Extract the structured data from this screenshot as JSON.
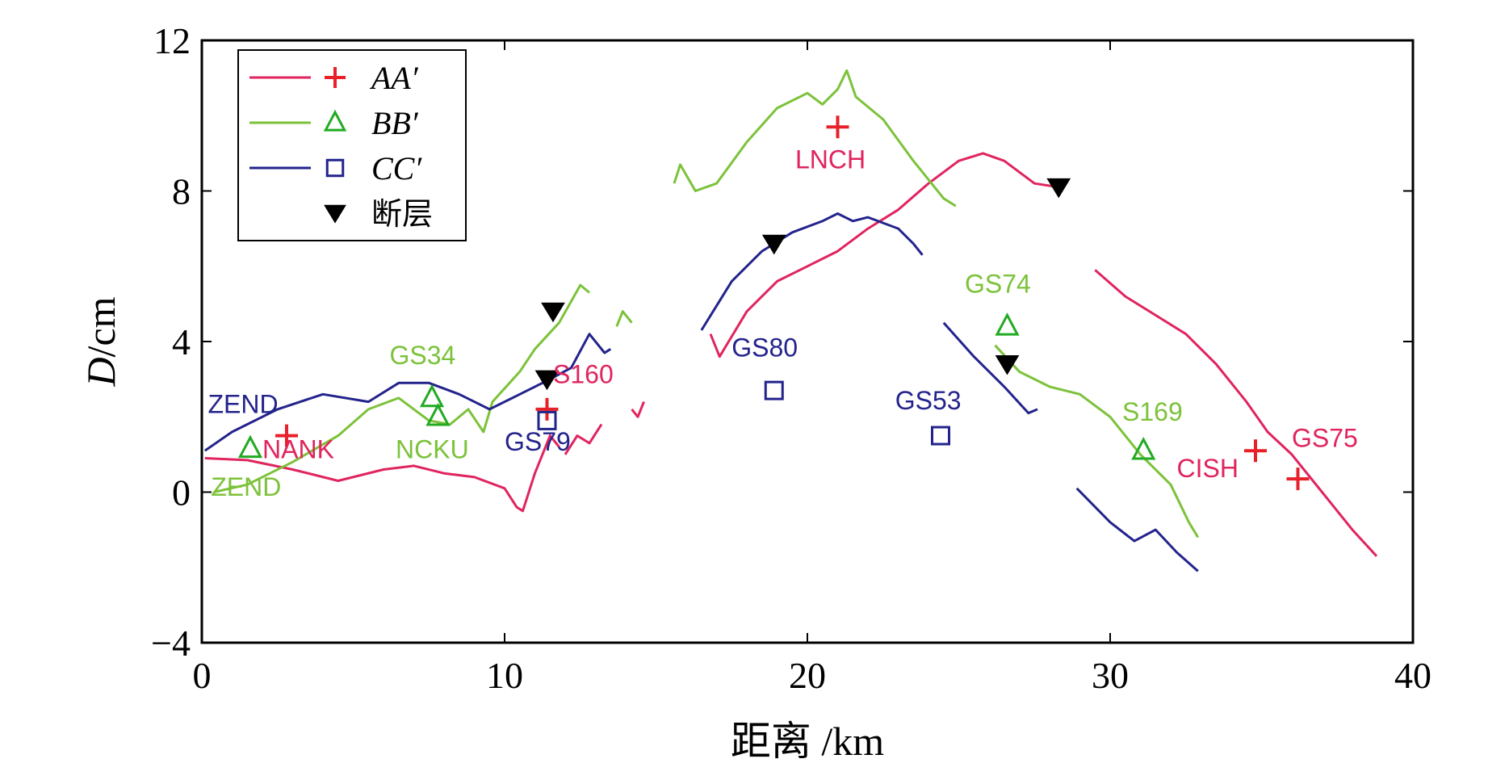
{
  "chart_data": {
    "type": "line",
    "title": "",
    "xlabel": "距离 /km",
    "ylabel": "D/cm",
    "ylabel_prefix": "D",
    "ylabel_suffix": "/cm",
    "xlim": [
      0,
      40
    ],
    "ylim": [
      -4,
      12
    ],
    "xticks": [
      0,
      10,
      20,
      30,
      40
    ],
    "yticks": [
      -4,
      0,
      4,
      8,
      12
    ],
    "xtick_labels": [
      "0",
      "10",
      "20",
      "30",
      "40"
    ],
    "ytick_labels": [
      "−4",
      "0",
      "4",
      "8",
      "12"
    ],
    "grid": false,
    "legend_position": "top-left",
    "legend": [
      {
        "label": "AA′",
        "color": "#e0245e",
        "marker": "plus",
        "marker_color": "#e8202a"
      },
      {
        "label": "BB′",
        "color": "#7cc23a",
        "marker": "triangle",
        "marker_color": "#22aa22"
      },
      {
        "label": "CC′",
        "color": "#23238c",
        "marker": "square",
        "marker_color": "#23238c"
      },
      {
        "label": "断层",
        "color": "#000000",
        "marker": "triangle-down",
        "marker_color": "#000000"
      }
    ],
    "series": [
      {
        "name": "AA′",
        "color": "#e0245e",
        "segments": [
          [
            [
              0.1,
              0.9
            ],
            [
              1.5,
              0.85
            ],
            [
              3,
              0.6
            ],
            [
              4.5,
              0.3
            ],
            [
              6,
              0.6
            ],
            [
              7,
              0.7
            ],
            [
              8,
              0.5
            ],
            [
              9,
              0.4
            ],
            [
              10,
              0.1
            ],
            [
              10.4,
              -0.4
            ],
            [
              10.6,
              -0.5
            ],
            [
              11,
              0.5
            ],
            [
              11.5,
              1.5
            ],
            [
              11.8,
              1.2
            ]
          ],
          [
            [
              12,
              1.0
            ],
            [
              12.4,
              1.5
            ],
            [
              12.8,
              1.3
            ],
            [
              13.2,
              1.8
            ]
          ],
          [
            [
              14.2,
              2.2
            ],
            [
              14.4,
              2.0
            ],
            [
              14.6,
              2.4
            ]
          ],
          [
            [
              16.8,
              4.2
            ],
            [
              17.1,
              3.6
            ],
            [
              17.4,
              4.0
            ],
            [
              18,
              4.8
            ],
            [
              19,
              5.6
            ],
            [
              20,
              6.0
            ],
            [
              21,
              6.4
            ],
            [
              22,
              7.0
            ],
            [
              23,
              7.5
            ],
            [
              24,
              8.2
            ],
            [
              25,
              8.8
            ],
            [
              25.8,
              9.0
            ],
            [
              26.5,
              8.8
            ],
            [
              27.5,
              8.2
            ],
            [
              28.3,
              8.1
            ]
          ],
          [
            [
              29.5,
              5.9
            ],
            [
              30.5,
              5.2
            ],
            [
              31.5,
              4.7
            ],
            [
              32.5,
              4.2
            ],
            [
              33.5,
              3.4
            ],
            [
              34.5,
              2.4
            ],
            [
              35.2,
              1.6
            ],
            [
              36,
              1.0
            ],
            [
              37,
              0.0
            ],
            [
              38,
              -1.0
            ],
            [
              38.8,
              -1.7
            ]
          ]
        ]
      },
      {
        "name": "BB′",
        "color": "#7cc23a",
        "segments": [
          [
            [
              0.4,
              0.0
            ],
            [
              1.5,
              0.2
            ],
            [
              3,
              0.8
            ],
            [
              4.5,
              1.5
            ],
            [
              5.5,
              2.2
            ],
            [
              6.5,
              2.5
            ],
            [
              7.5,
              1.9
            ],
            [
              8.2,
              1.8
            ],
            [
              8.8,
              2.2
            ],
            [
              9.3,
              1.6
            ],
            [
              9.6,
              2.4
            ],
            [
              10.5,
              3.2
            ],
            [
              11,
              3.8
            ],
            [
              11.8,
              4.5
            ],
            [
              12.5,
              5.5
            ],
            [
              12.8,
              5.3
            ]
          ],
          [
            [
              13.7,
              4.4
            ],
            [
              13.9,
              4.8
            ],
            [
              14.2,
              4.5
            ]
          ],
          [
            [
              15.6,
              8.2
            ],
            [
              15.8,
              8.7
            ],
            [
              16.3,
              8.0
            ],
            [
              17,
              8.2
            ],
            [
              18,
              9.3
            ],
            [
              19,
              10.2
            ],
            [
              20,
              10.6
            ],
            [
              20.5,
              10.3
            ],
            [
              21,
              10.7
            ],
            [
              21.3,
              11.2
            ],
            [
              21.6,
              10.5
            ],
            [
              22.5,
              9.9
            ],
            [
              23.5,
              8.8
            ],
            [
              24.5,
              7.8
            ],
            [
              24.9,
              7.6
            ]
          ],
          [
            [
              26.2,
              3.9
            ],
            [
              27,
              3.2
            ],
            [
              28,
              2.8
            ],
            [
              29,
              2.6
            ],
            [
              30,
              2.0
            ],
            [
              31,
              1.0
            ],
            [
              32,
              0.2
            ],
            [
              32.6,
              -0.8
            ],
            [
              32.9,
              -1.2
            ]
          ]
        ]
      },
      {
        "name": "CC′",
        "color": "#23238c",
        "segments": [
          [
            [
              0.1,
              1.1
            ],
            [
              1,
              1.6
            ],
            [
              2.5,
              2.2
            ],
            [
              4,
              2.6
            ],
            [
              5.5,
              2.4
            ],
            [
              6.5,
              2.9
            ],
            [
              7.5,
              2.9
            ],
            [
              8.5,
              2.6
            ],
            [
              9.5,
              2.2
            ],
            [
              10.5,
              2.6
            ],
            [
              11.5,
              3.0
            ],
            [
              12.2,
              3.3
            ],
            [
              12.8,
              4.2
            ],
            [
              13.3,
              3.7
            ],
            [
              13.5,
              3.8
            ]
          ],
          [
            [
              16.5,
              4.3
            ],
            [
              17.5,
              5.6
            ],
            [
              18.5,
              6.4
            ],
            [
              19.5,
              6.9
            ],
            [
              20.5,
              7.2
            ],
            [
              21,
              7.4
            ],
            [
              21.5,
              7.2
            ],
            [
              22,
              7.3
            ],
            [
              23,
              7.0
            ],
            [
              23.5,
              6.6
            ],
            [
              23.8,
              6.3
            ]
          ],
          [
            [
              24.5,
              4.5
            ],
            [
              25.5,
              3.6
            ],
            [
              26.5,
              2.8
            ],
            [
              27.3,
              2.1
            ],
            [
              27.6,
              2.2
            ]
          ],
          [
            [
              28.9,
              0.1
            ],
            [
              30,
              -0.8
            ],
            [
              30.8,
              -1.3
            ],
            [
              31.5,
              -1.0
            ],
            [
              32.2,
              -1.6
            ],
            [
              32.9,
              -2.1
            ]
          ]
        ]
      }
    ],
    "markers": [
      {
        "type": "plus",
        "color": "#e8202a",
        "x": 2.8,
        "y": 1.5
      },
      {
        "type": "plus",
        "color": "#e8202a",
        "x": 11.4,
        "y": 2.2
      },
      {
        "type": "plus",
        "color": "#e8202a",
        "x": 21.0,
        "y": 9.7
      },
      {
        "type": "plus",
        "color": "#e8202a",
        "x": 34.8,
        "y": 1.1
      },
      {
        "type": "plus",
        "color": "#e8202a",
        "x": 36.2,
        "y": 0.35
      },
      {
        "type": "triangle",
        "color": "#22aa22",
        "x": 7.6,
        "y": 2.5
      },
      {
        "type": "triangle",
        "color": "#22aa22",
        "x": 7.8,
        "y": 2.0
      },
      {
        "type": "triangle",
        "color": "#22aa22",
        "x": 26.6,
        "y": 4.4
      },
      {
        "type": "triangle",
        "color": "#22aa22",
        "x": 31.1,
        "y": 1.1
      },
      {
        "type": "triangle",
        "color": "#22aa22",
        "x": 1.6,
        "y": 1.15
      },
      {
        "type": "square",
        "color": "#23238c",
        "x": 11.4,
        "y": 1.9
      },
      {
        "type": "square",
        "color": "#23238c",
        "x": 18.9,
        "y": 2.7
      },
      {
        "type": "square",
        "color": "#23238c",
        "x": 24.4,
        "y": 1.5
      },
      {
        "type": "triangle-down",
        "color": "#000000",
        "x": 11.6,
        "y": 4.8
      },
      {
        "type": "triangle-down",
        "color": "#000000",
        "x": 11.4,
        "y": 3.0
      },
      {
        "type": "triangle-down",
        "color": "#000000",
        "x": 18.9,
        "y": 6.6
      },
      {
        "type": "triangle-down",
        "color": "#000000",
        "x": 28.3,
        "y": 8.1
      },
      {
        "type": "triangle-down",
        "color": "#000000",
        "x": 26.6,
        "y": 3.4
      }
    ],
    "annotations": [
      {
        "text": "ZEND",
        "color": "#23238c",
        "x": 0.2,
        "y": 2.1
      },
      {
        "text": "NANK",
        "color": "#e0245e",
        "x": 2.0,
        "y": 0.9
      },
      {
        "text": "ZEND",
        "color": "#7cc23a",
        "x": 0.3,
        "y": -0.1
      },
      {
        "text": "GS34",
        "color": "#7cc23a",
        "x": 6.2,
        "y": 3.4
      },
      {
        "text": "NCKU",
        "color": "#7cc23a",
        "x": 6.4,
        "y": 0.9
      },
      {
        "text": "S160",
        "color": "#e0245e",
        "x": 11.6,
        "y": 2.9
      },
      {
        "text": "GS79",
        "color": "#23238c",
        "x": 10.0,
        "y": 1.1
      },
      {
        "text": "LNCH",
        "color": "#e0245e",
        "x": 19.6,
        "y": 8.6
      },
      {
        "text": "GS80",
        "color": "#23238c",
        "x": 17.5,
        "y": 3.6
      },
      {
        "text": "GS74",
        "color": "#7cc23a",
        "x": 25.2,
        "y": 5.3
      },
      {
        "text": "GS53",
        "color": "#23238c",
        "x": 22.9,
        "y": 2.2
      },
      {
        "text": "S169",
        "color": "#7cc23a",
        "x": 30.4,
        "y": 1.9
      },
      {
        "text": "GS75",
        "color": "#e0245e",
        "x": 36.0,
        "y": 1.2
      },
      {
        "text": "CISH",
        "color": "#e0245e",
        "x": 32.2,
        "y": 0.4
      }
    ]
  }
}
